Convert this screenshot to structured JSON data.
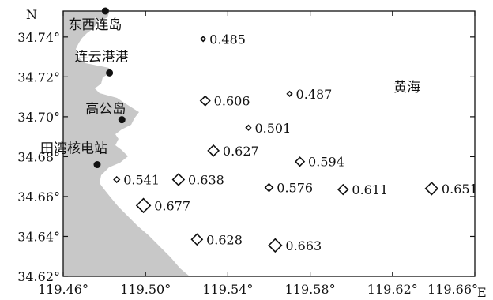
{
  "map": {
    "north_letter": "N",
    "east_letter": "E",
    "sea_label": "黄海",
    "land_color": "#c8c8c8",
    "y_ticks": [
      "34.74°",
      "34.72°",
      "34.70°",
      "34.68°",
      "34.66°",
      "34.64°",
      "34.62°"
    ],
    "x_ticks": [
      "119.46°",
      "119.50°",
      "119.54°",
      "119.58°",
      "119.62°",
      "119.66°"
    ],
    "places": [
      {
        "name": "东西连岛",
        "lon": 119.4805,
        "lat": 34.753
      },
      {
        "name": "连云港港",
        "lon": 119.4825,
        "lat": 34.722
      },
      {
        "name": "高公岛",
        "lon": 119.4885,
        "lat": 34.6985
      },
      {
        "name": "田湾核电站",
        "lon": 119.4765,
        "lat": 34.676
      }
    ],
    "stations": [
      {
        "value": "0.485",
        "lon": 119.528,
        "lat": 34.739,
        "size": 0.485
      },
      {
        "value": "0.606",
        "lon": 119.529,
        "lat": 34.708,
        "size": 0.606
      },
      {
        "value": "0.487",
        "lon": 119.57,
        "lat": 34.7115,
        "size": 0.487
      },
      {
        "value": "0.501",
        "lon": 119.55,
        "lat": 34.6945,
        "size": 0.501
      },
      {
        "value": "0.627",
        "lon": 119.533,
        "lat": 34.683,
        "size": 0.627
      },
      {
        "value": "0.594",
        "lon": 119.575,
        "lat": 34.6775,
        "size": 0.594
      },
      {
        "value": "0.541",
        "lon": 119.486,
        "lat": 34.6685,
        "size": 0.541
      },
      {
        "value": "0.638",
        "lon": 119.516,
        "lat": 34.6685,
        "size": 0.638
      },
      {
        "value": "0.576",
        "lon": 119.56,
        "lat": 34.6645,
        "size": 0.576
      },
      {
        "value": "0.611",
        "lon": 119.596,
        "lat": 34.6635,
        "size": 0.611
      },
      {
        "value": "0.651",
        "lon": 119.639,
        "lat": 34.664,
        "size": 0.651
      },
      {
        "value": "0.677",
        "lon": 119.499,
        "lat": 34.6555,
        "size": 0.677
      },
      {
        "value": "0.628",
        "lon": 119.525,
        "lat": 34.6385,
        "size": 0.628
      },
      {
        "value": "0.663",
        "lon": 119.563,
        "lat": 34.6355,
        "size": 0.663
      }
    ]
  }
}
